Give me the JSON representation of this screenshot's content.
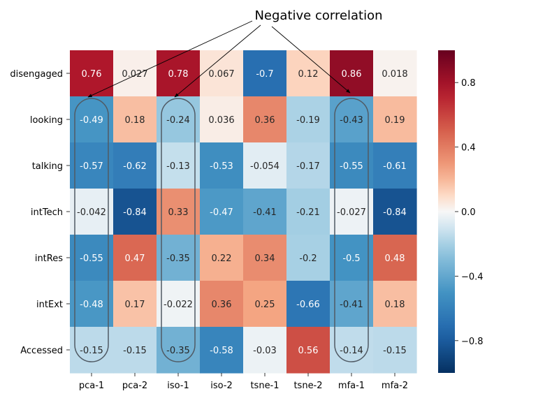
{
  "chart_data": {
    "type": "heatmap",
    "title": "",
    "xlabel": "",
    "ylabel": "",
    "columns": [
      "pca-1",
      "pca-2",
      "iso-1",
      "iso-2",
      "tsne-1",
      "tsne-2",
      "mfa-1",
      "mfa-2"
    ],
    "rows": [
      "disengaged",
      "looking",
      "talking",
      "intTech",
      "intRes",
      "intExt",
      "Accessed"
    ],
    "values": [
      [
        "0.76",
        "0.027",
        "0.78",
        "0.067",
        "-0.7",
        "0.12",
        "0.86",
        "0.018"
      ],
      [
        "-0.49",
        "0.18",
        "-0.24",
        "0.036",
        "0.36",
        "-0.19",
        "-0.43",
        "0.19"
      ],
      [
        "-0.57",
        "-0.62",
        "-0.13",
        "-0.53",
        "-0.054",
        "-0.17",
        "-0.55",
        "-0.61"
      ],
      [
        "-0.042",
        "-0.84",
        "0.33",
        "-0.47",
        "-0.41",
        "-0.21",
        "-0.027",
        "-0.84"
      ],
      [
        "-0.55",
        "0.47",
        "-0.35",
        "0.22",
        "0.34",
        "-0.2",
        "-0.5",
        "0.48"
      ],
      [
        "-0.48",
        "0.17",
        "-0.022",
        "0.36",
        "0.25",
        "-0.66",
        "-0.41",
        "0.18"
      ],
      [
        "-0.15",
        "-0.15",
        "-0.35",
        "-0.58",
        "-0.03",
        "0.56",
        "-0.14",
        "-0.15"
      ]
    ],
    "value_range": [
      -1,
      1
    ],
    "colormap": "RdBu_r",
    "colorbar": {
      "ticks": [
        0.8,
        0.4,
        0.0,
        -0.4,
        -0.8
      ],
      "tick_labels": [
        "0.8",
        "0.4",
        "0.0",
        "−0.4",
        "−0.8"
      ]
    },
    "annotation": {
      "text": "Negative correlation",
      "highlighted_columns": [
        "pca-1",
        "iso-1",
        "mfa-1"
      ]
    },
    "grid": false,
    "legend": "colorbar-right"
  }
}
